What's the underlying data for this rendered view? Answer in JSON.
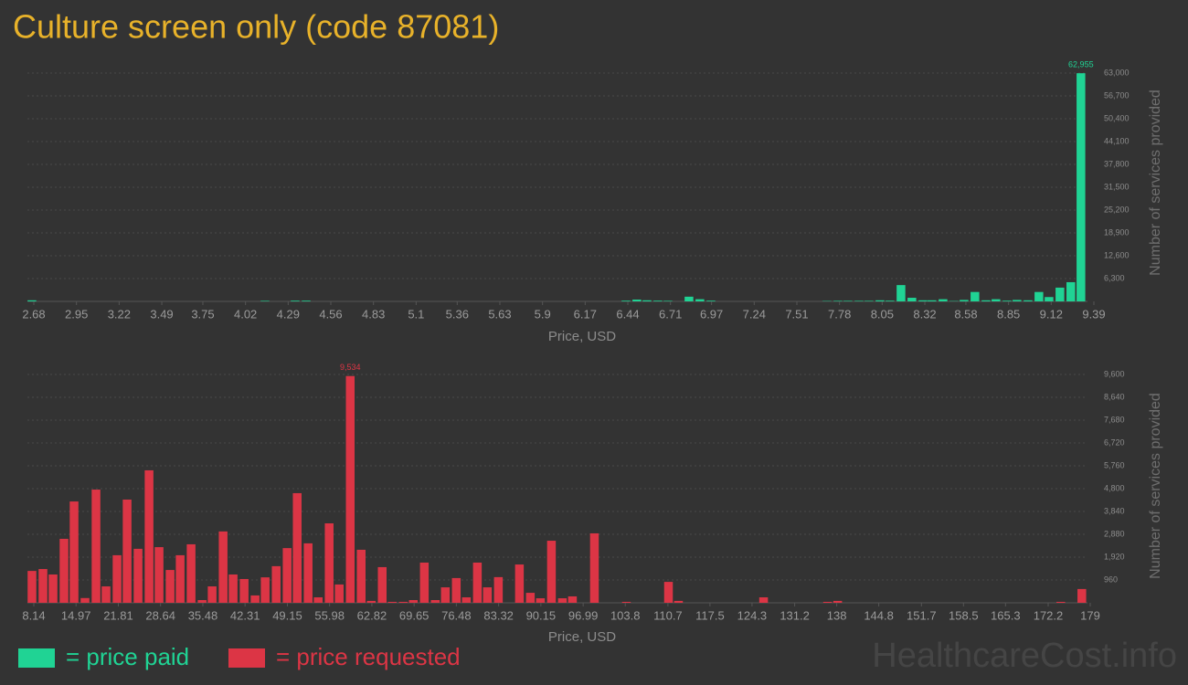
{
  "title": "Culture screen only (code 87081)",
  "watermark": "HealthcareCost.info",
  "chart_data": [
    {
      "type": "bar",
      "x_label": "Price, USD",
      "y_label": "Number of services provided",
      "x": [
        2.668,
        4.143,
        4.334,
        4.404,
        6.428,
        6.497,
        6.561,
        6.63,
        6.694,
        6.827,
        6.896,
        6.966,
        7.7,
        7.77,
        7.833,
        7.903,
        7.966,
        8.036,
        8.099,
        8.169,
        8.238,
        8.308,
        8.365,
        8.435,
        8.504,
        8.568,
        8.637,
        8.707,
        8.77,
        8.84,
        8.903,
        8.973,
        9.042,
        9.106,
        9.175,
        9.244,
        9.308
      ],
      "series": [
        {
          "name": "= price paid",
          "color": "#20d394",
          "values": [
            300,
            150,
            200,
            200,
            200,
            500,
            300,
            200,
            150,
            1300,
            600,
            200,
            100,
            150,
            150,
            150,
            150,
            300,
            200,
            4500,
            1000,
            300,
            300,
            600,
            100,
            400,
            2600,
            300,
            600,
            200,
            400,
            300,
            2600,
            1200,
            3800,
            5300,
            62955
          ],
          "value_labels": [
            null,
            null,
            null,
            null,
            null,
            null,
            null,
            null,
            null,
            null,
            null,
            null,
            null,
            null,
            null,
            null,
            null,
            null,
            null,
            null,
            null,
            null,
            null,
            null,
            null,
            null,
            null,
            null,
            null,
            null,
            null,
            null,
            null,
            null,
            null,
            null,
            "62,955"
          ]
        }
      ],
      "xlim": [
        2.68,
        9.39
      ],
      "xticks": [
        2.68,
        2.95,
        3.22,
        3.49,
        3.75,
        4.02,
        4.29,
        4.56,
        4.83,
        5.1,
        5.36,
        5.63,
        5.9,
        6.17,
        6.44,
        6.71,
        6.97,
        7.24,
        7.51,
        7.78,
        8.05,
        8.32,
        8.58,
        8.85,
        9.12,
        9.39
      ],
      "ylim": [
        0,
        63000
      ],
      "yticks": [
        {
          "value": 6300,
          "label": "6,300"
        },
        {
          "value": 12600,
          "label": "12,600"
        },
        {
          "value": 18900,
          "label": "18,900"
        },
        {
          "value": 25200,
          "label": "25,200"
        },
        {
          "value": 31500,
          "label": "31,500"
        },
        {
          "value": 37800,
          "label": "37,800"
        },
        {
          "value": 44100,
          "label": "44,100"
        },
        {
          "value": 50400,
          "label": "50,400"
        },
        {
          "value": 56700,
          "label": "56,700"
        },
        {
          "value": 63000,
          "label": "63,000"
        }
      ],
      "grid": true
    },
    {
      "type": "bar",
      "x_label": "Price, USD",
      "y_label": "Number of services provided",
      "x": [
        7.84,
        9.62,
        11.25,
        13.02,
        14.65,
        16.42,
        18.2,
        19.82,
        21.6,
        23.23,
        25.0,
        26.78,
        28.4,
        30.18,
        31.81,
        33.58,
        35.36,
        36.98,
        38.76,
        40.38,
        42.16,
        43.93,
        45.56,
        47.34,
        49.11,
        50.74,
        52.51,
        54.14,
        55.91,
        57.54,
        59.32,
        61.09,
        62.72,
        64.49,
        66.12,
        67.9,
        69.52,
        71.3,
        73.07,
        74.7,
        76.47,
        78.1,
        79.88,
        81.5,
        83.28,
        86.68,
        88.45,
        90.08,
        91.86,
        93.63,
        95.26,
        98.81,
        103.98,
        110.79,
        112.41,
        126.17,
        136.52,
        138.15,
        174.24,
        177.64
      ],
      "series": [
        {
          "name": "= price requested",
          "color": "#dc3545",
          "values": [
            1340,
            1420,
            1190,
            2690,
            4260,
            200,
            4760,
            690,
            2000,
            4340,
            2270,
            5570,
            2340,
            1380,
            2000,
            2460,
            115,
            690,
            3000,
            1190,
            1000,
            310,
            1070,
            1540,
            2300,
            4610,
            2500,
            230,
            3340,
            770,
            9534,
            2230,
            80,
            1500,
            40,
            40,
            115,
            1690,
            115,
            650,
            1040,
            230,
            1690,
            650,
            1080,
            1610,
            420,
            190,
            2610,
            190,
            270,
            2920,
            40,
            880,
            80,
            230,
            40,
            80,
            40,
            580
          ],
          "value_labels": [
            null,
            null,
            null,
            null,
            null,
            null,
            null,
            null,
            null,
            null,
            null,
            null,
            null,
            null,
            null,
            null,
            null,
            null,
            null,
            null,
            null,
            null,
            null,
            null,
            null,
            null,
            null,
            null,
            null,
            null,
            "9,534",
            null,
            null,
            null,
            null,
            null,
            null,
            null,
            null,
            null,
            null,
            null,
            null,
            null,
            null,
            null,
            null,
            null,
            null,
            null,
            null,
            null,
            null,
            null,
            null,
            null,
            null,
            null,
            null,
            null
          ]
        }
      ],
      "xlim": [
        8.14,
        179
      ],
      "xticks": [
        8.14,
        14.97,
        21.81,
        28.64,
        35.48,
        42.31,
        49.15,
        55.98,
        62.82,
        69.65,
        76.48,
        83.32,
        90.15,
        96.99,
        103.8,
        110.7,
        117.5,
        124.3,
        131.2,
        138,
        144.8,
        151.7,
        158.5,
        165.3,
        172.2,
        179
      ],
      "ylim": [
        0,
        9600
      ],
      "yticks": [
        960,
        {
          "value": 1920,
          "label": "1,920"
        },
        {
          "value": 2880,
          "label": "2,880"
        },
        {
          "value": 3840,
          "label": "3,840"
        },
        {
          "value": 4800,
          "label": "4,800"
        },
        {
          "value": 5760,
          "label": "5,760"
        },
        {
          "value": 6720,
          "label": "6,720"
        },
        {
          "value": 7680,
          "label": "7,680"
        },
        {
          "value": 8640,
          "label": "8,640"
        },
        {
          "value": 9600,
          "label": "9,600"
        }
      ],
      "grid": true
    }
  ]
}
